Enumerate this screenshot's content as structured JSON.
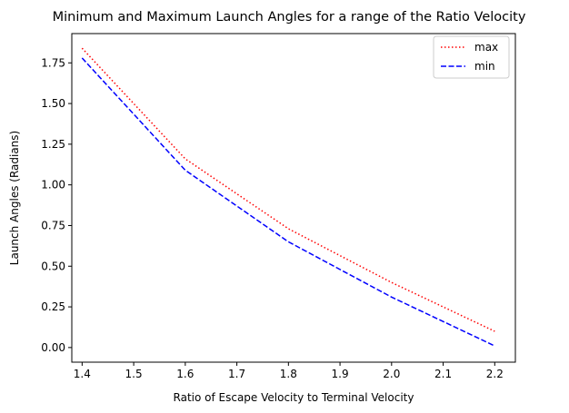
{
  "chart_data": {
    "type": "line",
    "title": "Minimum and Maximum Launch Angles for a range of the Ratio Velocity",
    "xlabel": "Ratio of Escape Velocity to Terminal Velocity",
    "ylabel": "Launch Angles (Radians)",
    "xlim": [
      1.38,
      2.24
    ],
    "ylim": [
      -0.09,
      1.93
    ],
    "xticks": [
      1.4,
      1.5,
      1.6,
      1.7,
      1.8,
      1.9,
      2.0,
      2.1,
      2.2
    ],
    "xtick_labels": [
      "1.4",
      "1.5",
      "1.6",
      "1.7",
      "1.8",
      "1.9",
      "2.0",
      "2.1",
      "2.2"
    ],
    "yticks": [
      0.0,
      0.25,
      0.5,
      0.75,
      1.0,
      1.25,
      1.5,
      1.75
    ],
    "ytick_labels": [
      "0.00",
      "0.25",
      "0.50",
      "0.75",
      "1.00",
      "1.25",
      "1.50",
      "1.75"
    ],
    "grid": false,
    "legend_position": "upper right",
    "series": [
      {
        "name": "max",
        "color": "#ff0000",
        "style": "dotted",
        "x": [
          1.4,
          1.6,
          1.8,
          2.0,
          2.2
        ],
        "y": [
          1.84,
          1.16,
          0.73,
          0.4,
          0.1
        ]
      },
      {
        "name": "min",
        "color": "#0000ff",
        "style": "dashed",
        "x": [
          1.4,
          1.6,
          1.8,
          2.0,
          2.2
        ],
        "y": [
          1.78,
          1.09,
          0.65,
          0.31,
          0.01
        ]
      }
    ]
  }
}
